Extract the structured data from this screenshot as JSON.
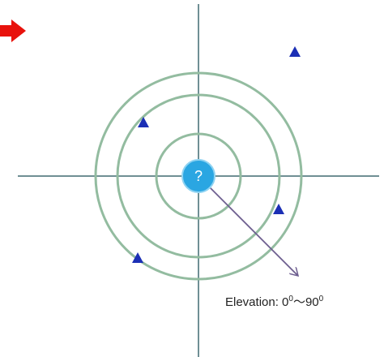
{
  "center_label": "?",
  "elevation_label": {
    "prefix": "Elevation: 0",
    "sup1": "0",
    "middle": "～90",
    "sup2": "0"
  }
}
